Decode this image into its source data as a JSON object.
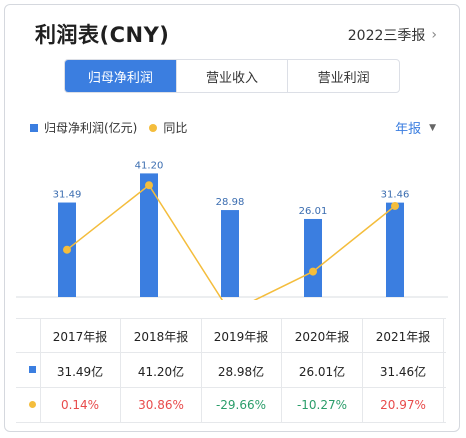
{
  "header": {
    "title": "利润表(CNY)",
    "period": "2022三季报"
  },
  "tabs": [
    {
      "label": "归母净利润",
      "active": true
    },
    {
      "label": "营业收入",
      "active": false
    },
    {
      "label": "营业利润",
      "active": false
    }
  ],
  "legend": {
    "bar_label": "归母净利润(亿元)",
    "line_label": "同比"
  },
  "frequency": "年报",
  "colors": {
    "bar": "#3b7ee0",
    "line": "#f4bd3c",
    "positive": "#e84b4b",
    "negative": "#2a9d6a"
  },
  "chart_data": {
    "type": "bar+line",
    "categories": [
      "2017年报",
      "2018年报",
      "2019年报",
      "2020年报",
      "2021年报"
    ],
    "series": [
      {
        "name": "归母净利润(亿元)",
        "type": "bar",
        "values": [
          31.49,
          41.2,
          28.98,
          26.01,
          31.46
        ]
      },
      {
        "name": "同比",
        "type": "line",
        "values": [
          0.14,
          30.86,
          -29.66,
          -10.27,
          20.97
        ]
      }
    ],
    "bar_labels": [
      "31.49",
      "41.20",
      "28.98",
      "26.01",
      "31.46"
    ]
  },
  "table": {
    "headers": [
      "2017年报",
      "2018年报",
      "2019年报",
      "2020年报",
      "2021年报"
    ],
    "profit_row": [
      "31.49亿",
      "41.20亿",
      "28.98亿",
      "26.01亿",
      "31.46亿"
    ],
    "yoy_row": [
      "0.14%",
      "30.86%",
      "-29.66%",
      "-10.27%",
      "20.97%"
    ]
  }
}
